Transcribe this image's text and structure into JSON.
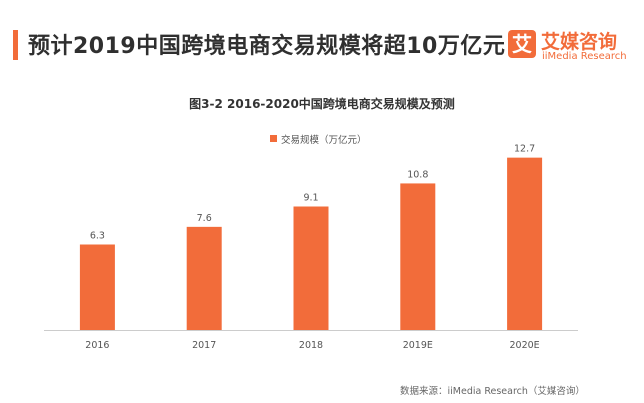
{
  "header": {
    "title": "预计2019中国跨境电商交易规模将超10万亿元"
  },
  "logo": {
    "mark": "艾",
    "name": "艾媒咨询",
    "subtitle": "iiMedia Research"
  },
  "source": "数据来源：iiMedia Research（艾媒咨询）",
  "colors": {
    "accent": "#F26C3A",
    "axis": "#cccccc"
  },
  "chart_data": {
    "type": "bar",
    "title": "图3-2 2016-2020中国跨境电商交易规模及预测",
    "xlabel": "",
    "ylabel": "",
    "categories": [
      "2016",
      "2017",
      "2018",
      "2019E",
      "2020E"
    ],
    "series": [
      {
        "name": "交易规模（万亿元）",
        "values": [
          6.3,
          7.6,
          9.1,
          10.8,
          12.7
        ]
      }
    ],
    "ylim": [
      0,
      14
    ],
    "legend_position": "top-center",
    "grid": false,
    "data_labels": true
  }
}
